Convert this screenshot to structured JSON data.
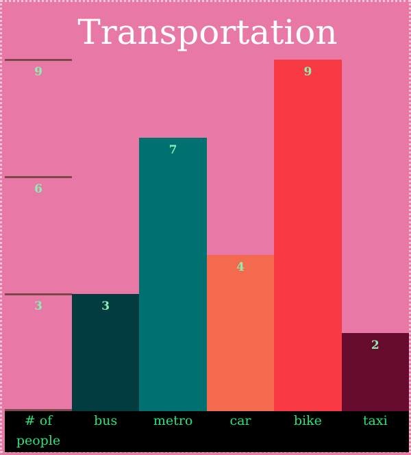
{
  "chart_data": {
    "type": "bar",
    "title": "Transportation",
    "ylabel": "# of people",
    "categories": [
      "bus",
      "metro",
      "car",
      "bike",
      "taxi"
    ],
    "values": [
      3,
      7,
      4,
      9,
      2
    ],
    "bar_colors": [
      "#023c40",
      "#007070",
      "#f46a4e",
      "#fa3a42",
      "#660a2e"
    ],
    "yticks": [
      3,
      6,
      9
    ],
    "ylim": [
      0,
      9
    ],
    "grid": false
  },
  "colors": {
    "background": "#e879a6",
    "axis_bar": "#000000",
    "label_text": "#2ee07a",
    "value_text": "#8af0b0",
    "tick_line": "#7a4848"
  }
}
